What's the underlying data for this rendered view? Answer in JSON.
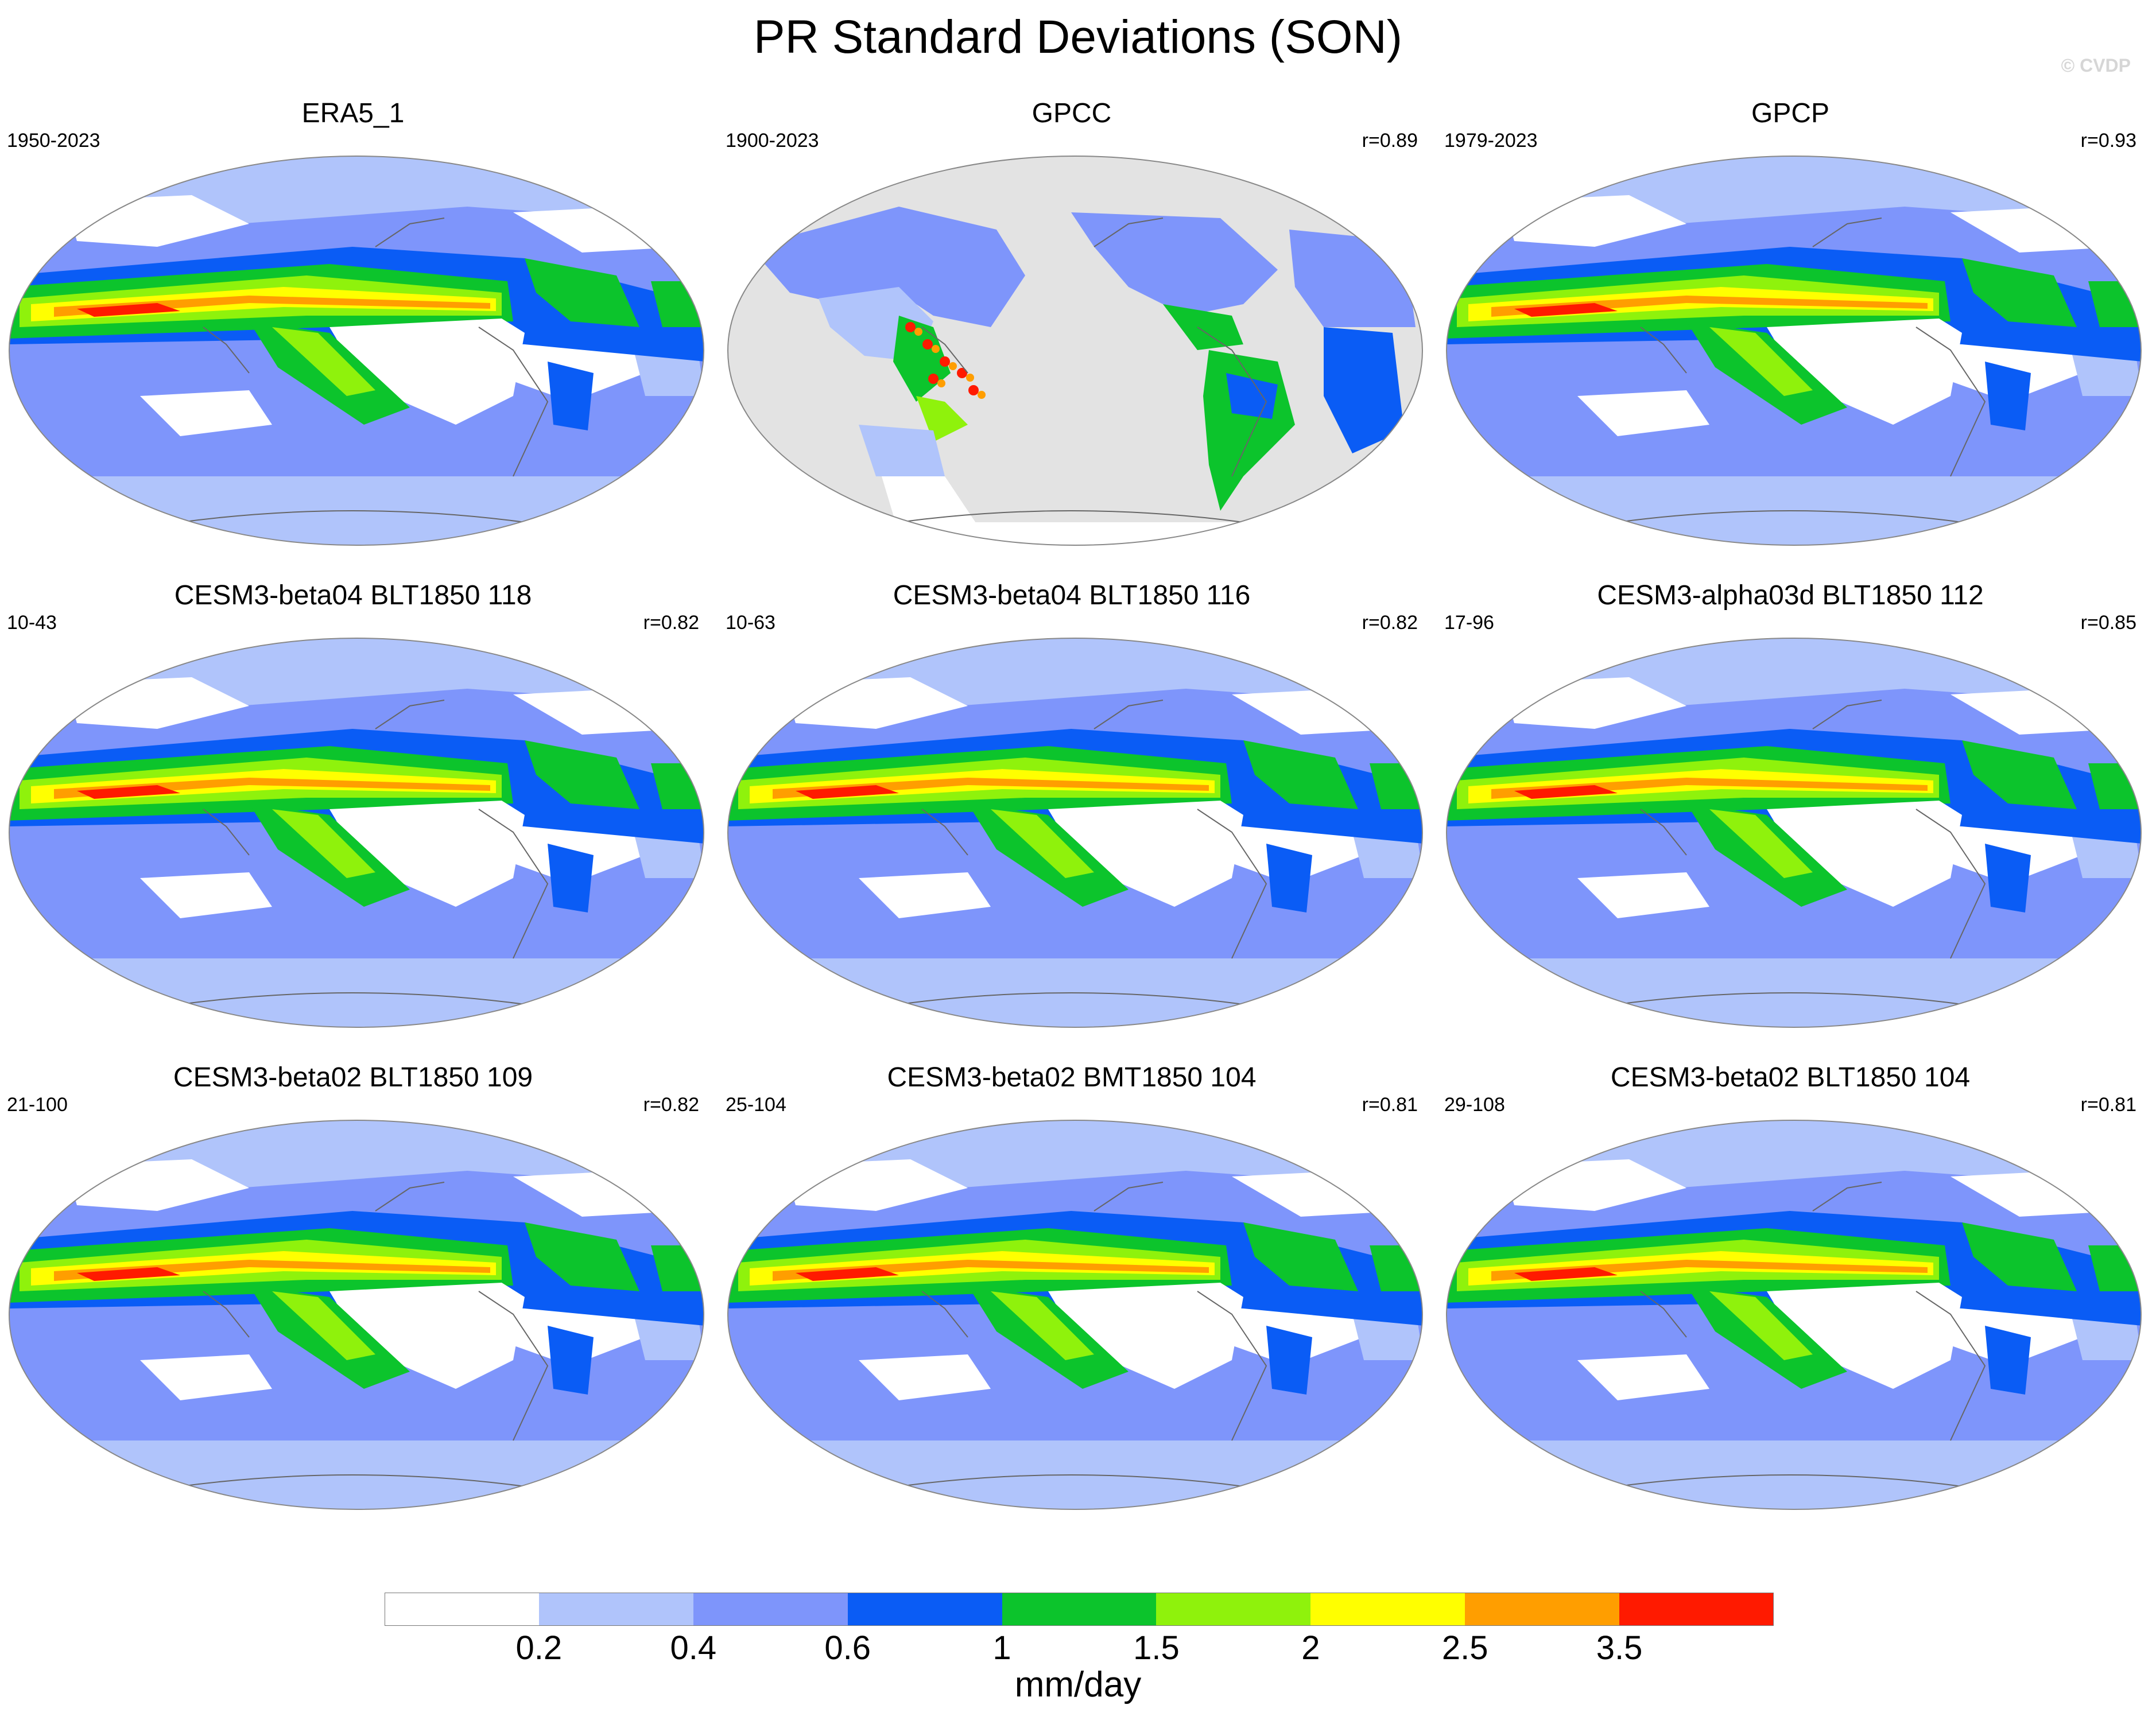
{
  "title": "PR Standard Deviations (SON)",
  "credit": "© CVDP",
  "panels": [
    {
      "title": "ERA5_1",
      "period": "1950-2023",
      "corr": "",
      "style": "full"
    },
    {
      "title": "GPCC",
      "period": "1900-2023",
      "corr": "r=0.89",
      "style": "land"
    },
    {
      "title": "GPCP",
      "period": "1979-2023",
      "corr": "r=0.93",
      "style": "full"
    },
    {
      "title": "CESM3-beta04 BLT1850 118",
      "period": "10-43",
      "corr": "r=0.82",
      "style": "full"
    },
    {
      "title": "CESM3-beta04 BLT1850 116",
      "period": "10-63",
      "corr": "r=0.82",
      "style": "full"
    },
    {
      "title": "CESM3-alpha03d BLT1850 112",
      "period": "17-96",
      "corr": "r=0.85",
      "style": "full"
    },
    {
      "title": "CESM3-beta02 BLT1850 109",
      "period": "21-100",
      "corr": "r=0.82",
      "style": "full"
    },
    {
      "title": "CESM3-beta02 BMT1850 104",
      "period": "25-104",
      "corr": "r=0.81",
      "style": "full"
    },
    {
      "title": "CESM3-beta02 BLT1850 104",
      "period": "29-108",
      "corr": "r=0.81",
      "style": "full"
    }
  ],
  "colorbar": {
    "colors": [
      "#ffffff",
      "#b0c4fb",
      "#7e95fb",
      "#0a5cf5",
      "#0cc42c",
      "#8ff20c",
      "#ffff00",
      "#ff9e00",
      "#ff1a00"
    ],
    "ticks": [
      "0.2",
      "0.4",
      "0.6",
      "1",
      "1.5",
      "2",
      "2.5",
      "3.5"
    ],
    "units": "mm/day"
  },
  "land_mask_color": "#e3e3e3"
}
